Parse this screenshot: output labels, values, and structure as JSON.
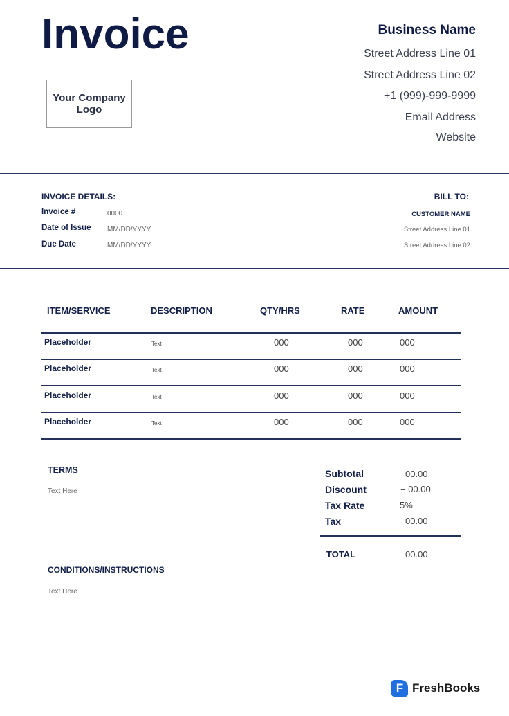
{
  "header": {
    "title": "Invoice",
    "logo_text": "Your Company Logo"
  },
  "business": {
    "name": "Business Name",
    "lines": [
      "Street Address Line 01",
      "Street Address Line 02",
      "+1 (999)-999-9999",
      "Email Address",
      "Website"
    ]
  },
  "invoice_details": {
    "heading": "INVOICE DETAILS:",
    "fields": [
      {
        "label": "Invoice #",
        "value": "0000"
      },
      {
        "label": "Date of Issue",
        "value": "MM/DD/YYYY"
      },
      {
        "label": "Due Date",
        "value": "MM/DD/YYYY"
      }
    ]
  },
  "bill_to": {
    "heading": "BILL TO:",
    "customer": "CUSTOMER NAME",
    "lines": [
      "Street Address Line 01",
      "Street Address Line 02"
    ]
  },
  "table": {
    "headers": [
      "ITEM/SERVICE",
      "DESCRIPTION",
      "QTY/HRS",
      "RATE",
      "AMOUNT"
    ],
    "rows": [
      {
        "item": "Placeholder",
        "desc": "Text",
        "qty": "000",
        "rate": "000",
        "amount": "000"
      },
      {
        "item": "Placeholder",
        "desc": "Text",
        "qty": "000",
        "rate": "000",
        "amount": "000"
      },
      {
        "item": "Placeholder",
        "desc": "Text",
        "qty": "000",
        "rate": "000",
        "amount": "000"
      },
      {
        "item": "Placeholder",
        "desc": "Text",
        "qty": "000",
        "rate": "000",
        "amount": "000"
      }
    ]
  },
  "terms": {
    "heading": "TERMS",
    "text": "Text Here"
  },
  "conditions": {
    "heading": "CONDITIONS/INSTRUCTIONS",
    "text": "Text Here"
  },
  "totals": {
    "subtotal_label": "Subtotal",
    "subtotal": "00.00",
    "discount_label": "Discount",
    "discount": "− 00.00",
    "taxrate_label": "Tax Rate",
    "taxrate": "5%",
    "tax_label": "Tax",
    "tax": "00.00",
    "total_label": "TOTAL",
    "total": "00.00"
  },
  "brand": {
    "name": "FreshBooks",
    "icon_letter": "F",
    "color": "#1f6fe0"
  }
}
